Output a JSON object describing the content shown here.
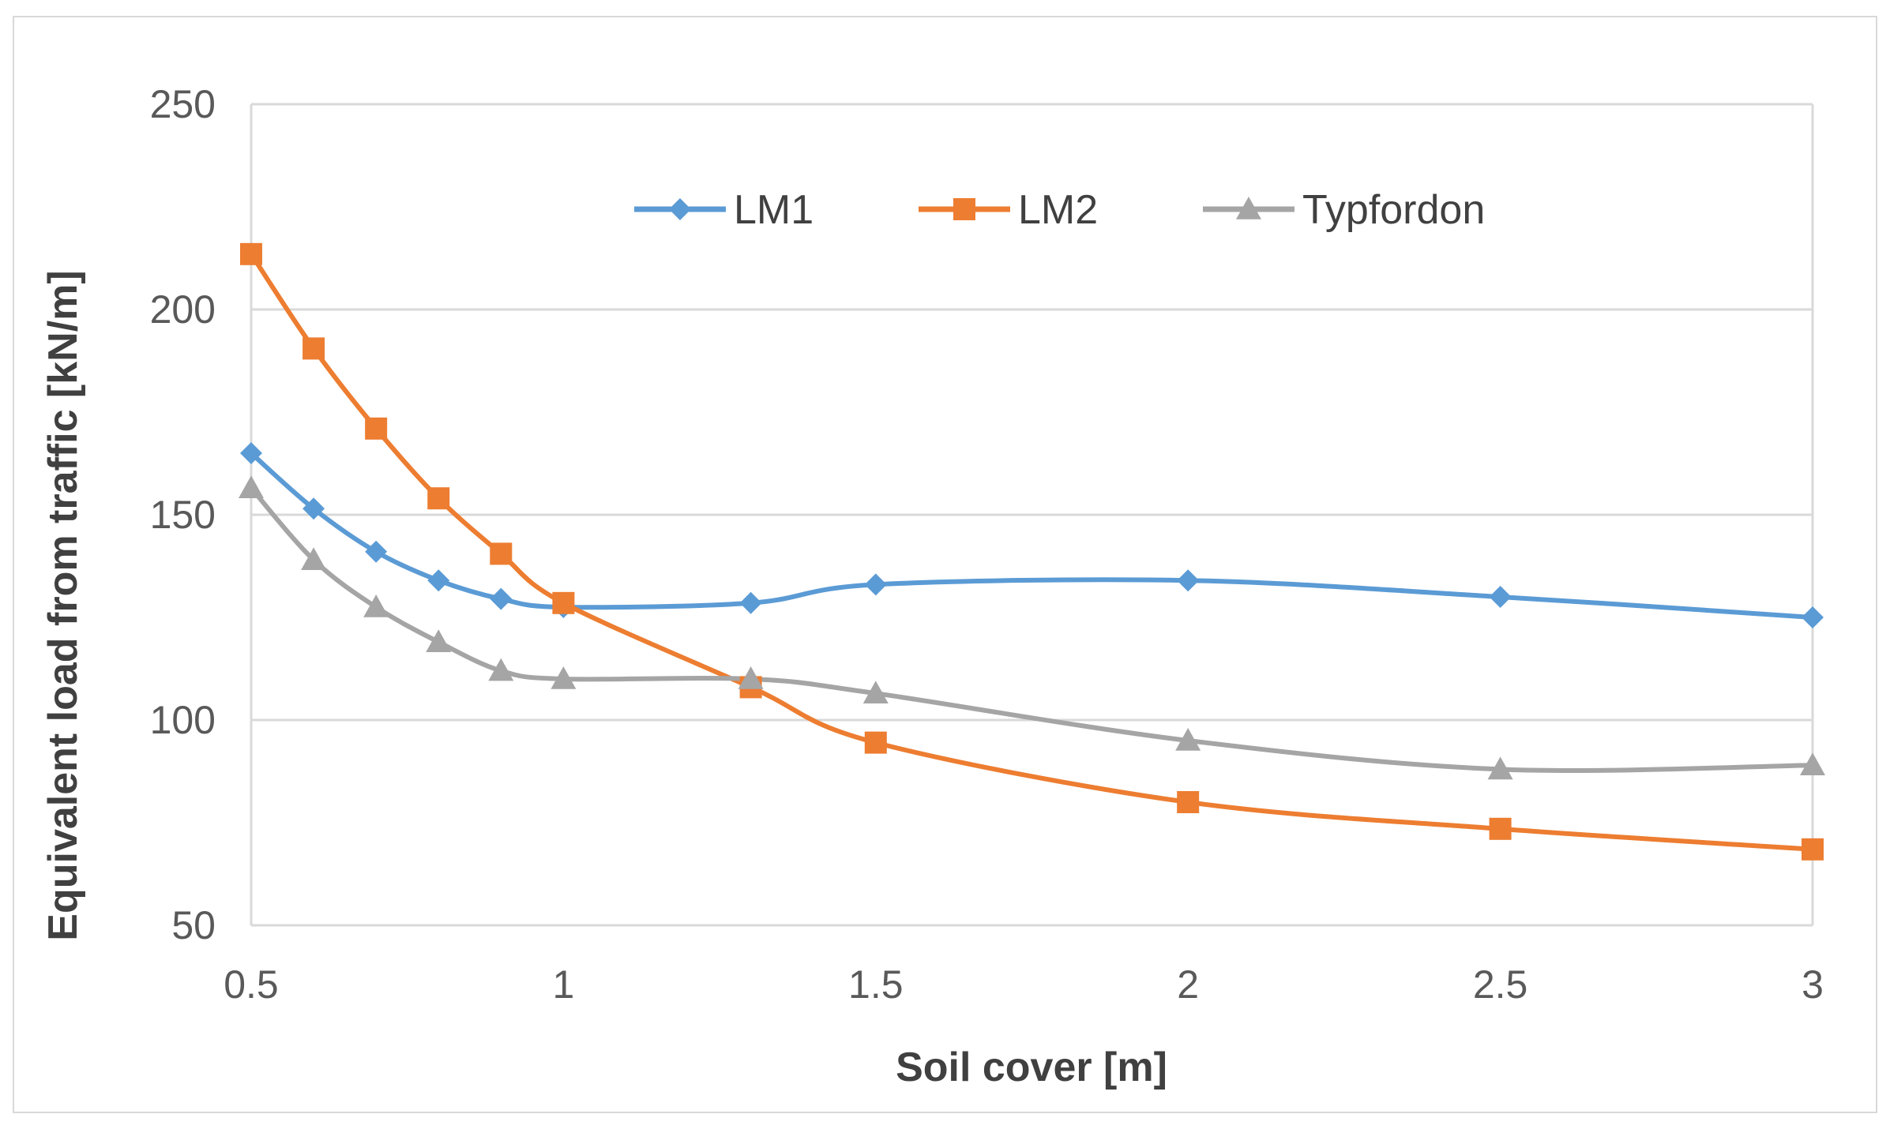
{
  "chart_data": {
    "type": "line",
    "title": "",
    "xlabel": "Soil cover [m]",
    "ylabel": "Equivalent load from traffic [kN/m]",
    "x": [
      0.5,
      0.6,
      0.7,
      0.8,
      0.9,
      1.0,
      1.3,
      1.5,
      2.0,
      2.5,
      3.0
    ],
    "x_ticks": [
      "0.5",
      "1",
      "1.5",
      "2",
      "2.5",
      "3"
    ],
    "y_ticks": [
      "50",
      "100",
      "150",
      "200",
      "250"
    ],
    "xlim": [
      0.5,
      3.0
    ],
    "ylim": [
      50,
      250
    ],
    "grid": "horizontal",
    "legend_position": "top-center",
    "series": [
      {
        "name": "LM1",
        "color": "#5b9bd5",
        "marker": "diamond",
        "values": [
          165,
          151.5,
          141,
          134,
          129.5,
          127.5,
          128.5,
          133,
          134,
          130,
          125
        ]
      },
      {
        "name": "LM2",
        "color": "#ed7d31",
        "marker": "square",
        "values": [
          213.5,
          190.5,
          171,
          154,
          140.5,
          128.5,
          108,
          94.5,
          80,
          73.5,
          68.5
        ]
      },
      {
        "name": "Typfordon",
        "color": "#a5a5a5",
        "marker": "triangle",
        "values": [
          156.5,
          139,
          127.5,
          119,
          112,
          110,
          110,
          106.5,
          95,
          88,
          89
        ]
      }
    ]
  }
}
